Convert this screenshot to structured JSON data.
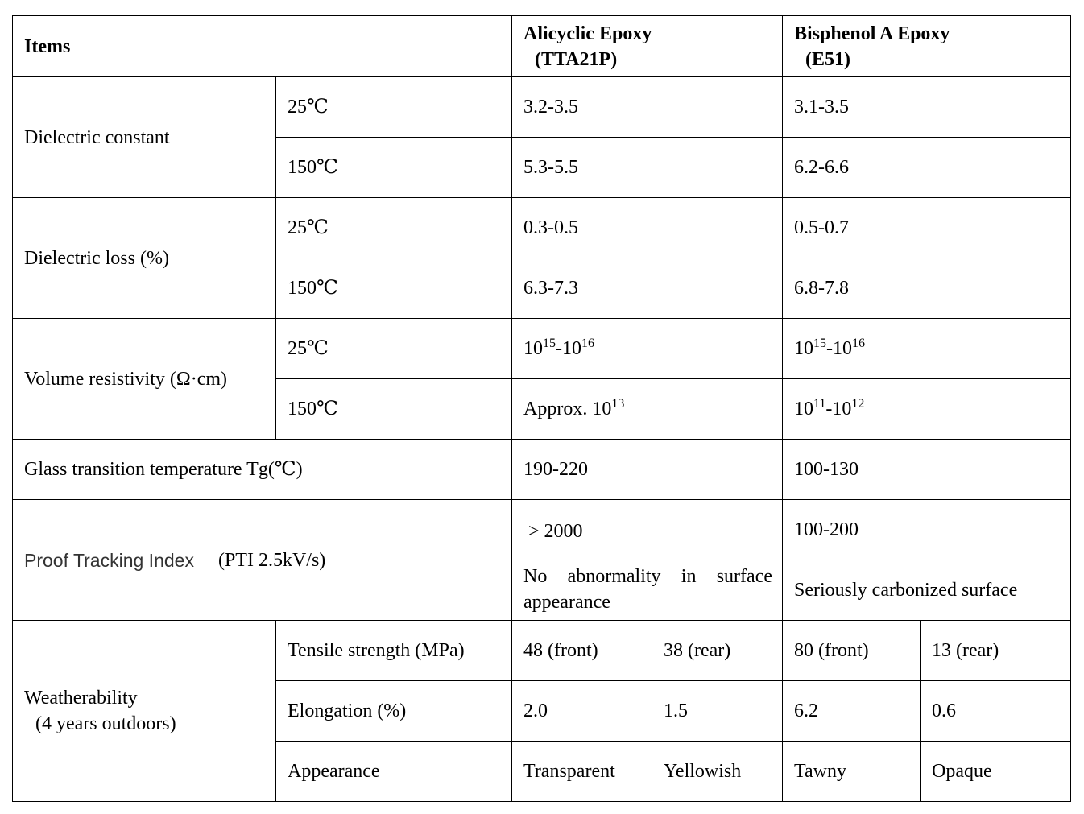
{
  "header": {
    "items": "Items",
    "alicyclic": [
      "Alicyclic Epoxy",
      "(TTA21P)"
    ],
    "bisphenol": [
      "Bisphenol A Epoxy",
      "(E51)"
    ]
  },
  "dielectric_constant": {
    "label": "Dielectric constant",
    "rows": [
      {
        "temp": "25℃",
        "alicyclic": "3.2-3.5",
        "bisphenol": "3.1-3.5"
      },
      {
        "temp": "150℃",
        "alicyclic": "5.3-5.5",
        "bisphenol": "6.2-6.6"
      }
    ]
  },
  "dielectric_loss": {
    "label": "Dielectric loss (%)",
    "rows": [
      {
        "temp": "25℃",
        "alicyclic": "0.3-0.5",
        "bisphenol": "0.5-0.7"
      },
      {
        "temp": "150℃",
        "alicyclic": "6.3-7.3",
        "bisphenol": "6.8-7.8"
      }
    ]
  },
  "volume_resistivity": {
    "label": "Volume resistivity (Ω·cm)",
    "rows": [
      {
        "temp": "25℃",
        "alicyclic": [
          {
            "text": "10"
          },
          {
            "sup": "15"
          },
          {
            "text": "-10"
          },
          {
            "sup": "16"
          }
        ],
        "bisphenol": [
          {
            "text": "10"
          },
          {
            "sup": "15"
          },
          {
            "text": "-10"
          },
          {
            "sup": "16"
          }
        ]
      },
      {
        "temp": "150℃",
        "alicyclic": [
          {
            "text": "Approx. 10"
          },
          {
            "sup": "13"
          }
        ],
        "bisphenol": [
          {
            "text": "10"
          },
          {
            "sup": "11"
          },
          {
            "text": "-10"
          },
          {
            "sup": "12"
          }
        ]
      }
    ]
  },
  "glass_transition": {
    "label": "Glass transition temperature Tg(℃)",
    "alicyclic": "190-220",
    "bisphenol": "100-130"
  },
  "pti": {
    "label": "Proof Tracking Index",
    "condition": "(PTI 2.5kV/s)",
    "alicyclic": [
      "> 2000",
      "No abnormality in surface appearance"
    ],
    "bisphenol": [
      "100-200",
      "Seriously carbonized surface"
    ]
  },
  "weatherability": {
    "label": [
      "Weatherability",
      "(4 years outdoors)"
    ],
    "rows": [
      {
        "property": "Tensile strength (MPa)",
        "values": [
          "48 (front)",
          "38 (rear)",
          "80 (front)",
          "13 (rear)"
        ]
      },
      {
        "property": "Elongation (%)",
        "values": [
          "2.0",
          "1.5",
          "6.2",
          "0.6"
        ]
      },
      {
        "property": "Appearance",
        "values": [
          "Transparent",
          "Yellowish",
          "Tawny",
          "Opaque"
        ]
      }
    ]
  }
}
